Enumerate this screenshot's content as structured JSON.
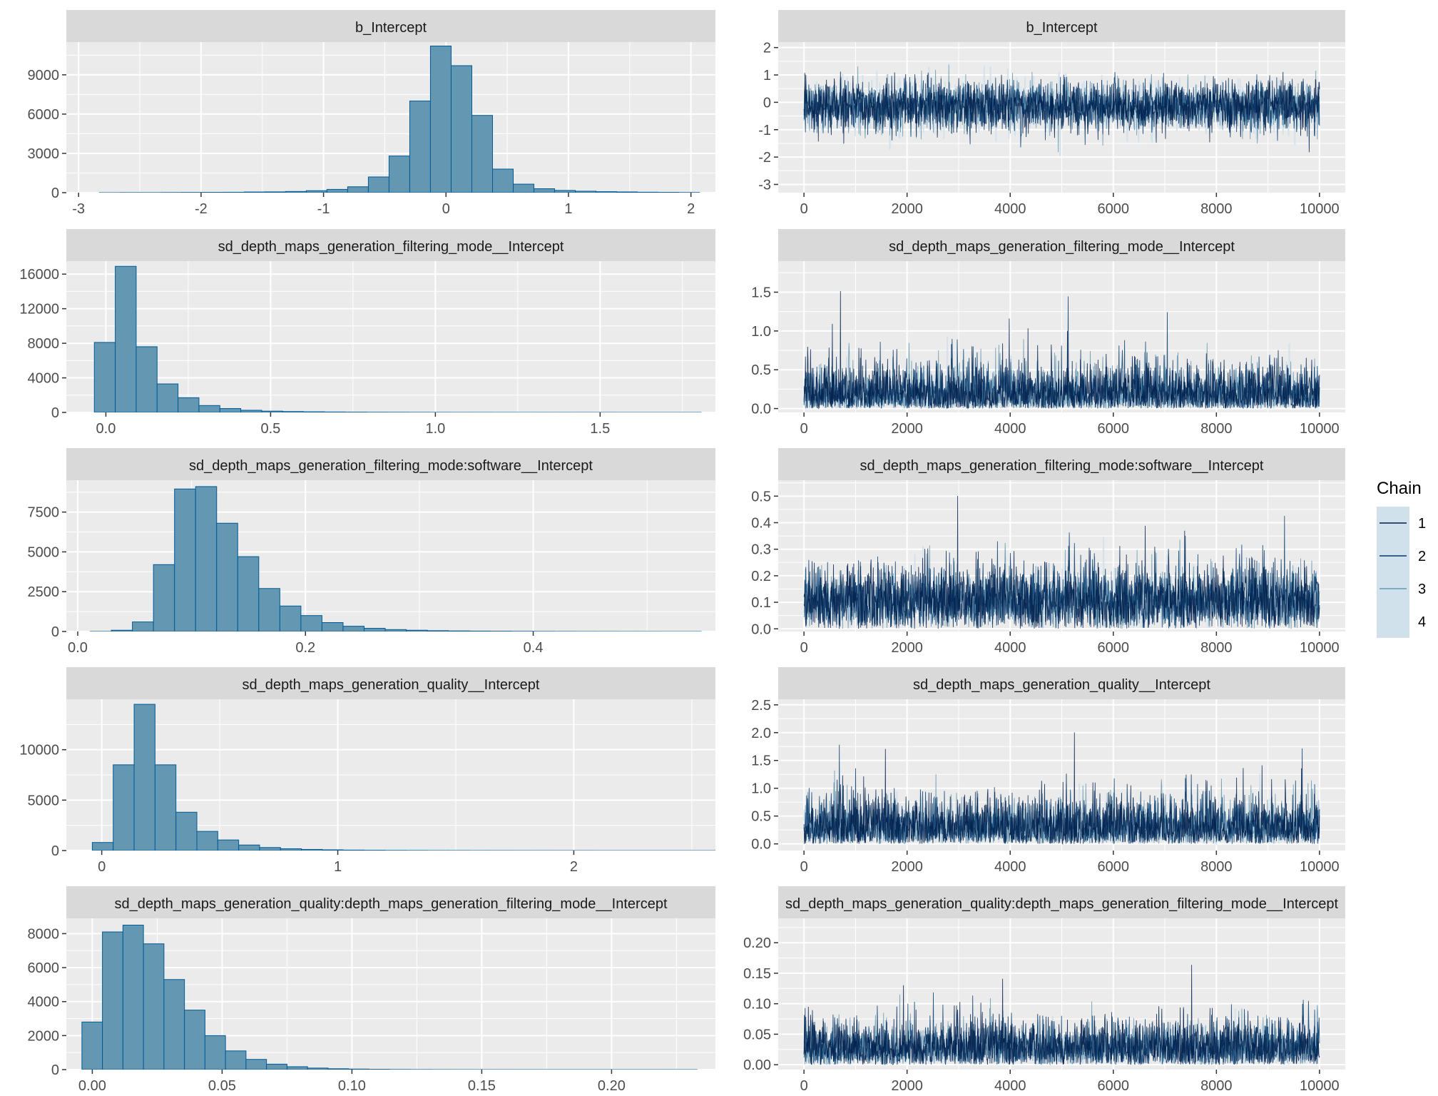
{
  "colors": {
    "panel_bg": "#ebebeb",
    "strip_bg": "#d9d9d9",
    "grid": "#ffffff",
    "hist_fill": "#6497b1",
    "hist_line": "#005b96",
    "tick": "#333333",
    "chain_colors": [
      "#011f4b",
      "#03396c",
      "#6497b1",
      "#d1e1ec"
    ]
  },
  "legend": {
    "title": "Chain",
    "items": [
      "1",
      "2",
      "3",
      "4"
    ]
  },
  "chart_data": [
    {
      "type": "bar",
      "title": "b_Intercept",
      "xlim": [
        -3.1,
        2.2
      ],
      "ylim": [
        0,
        11500
      ],
      "xticks": [
        -3,
        -2,
        -1,
        0,
        1,
        2
      ],
      "xtick_labels": [
        "-3",
        "-2",
        "-1",
        "0",
        "1",
        "2"
      ],
      "yticks": [
        0,
        3000,
        6000,
        9000
      ],
      "ytick_labels": [
        "0",
        "3000",
        "6000",
        "9000"
      ],
      "bin_start": -3.0,
      "bin_width": 0.169,
      "values": [
        0,
        5,
        10,
        10,
        15,
        20,
        25,
        30,
        50,
        60,
        90,
        150,
        250,
        450,
        1200,
        2800,
        7000,
        11200,
        9700,
        5900,
        1800,
        650,
        300,
        170,
        110,
        75,
        55,
        35,
        25,
        15
      ]
    },
    {
      "type": "line",
      "title": "b_Intercept",
      "xlim": [
        -500,
        10500
      ],
      "ylim": [
        -3.3,
        2.2
      ],
      "xticks": [
        0,
        2000,
        4000,
        6000,
        8000,
        10000
      ],
      "xtick_labels": [
        "0",
        "2000",
        "4000",
        "6000",
        "8000",
        "10000"
      ],
      "yticks": [
        -3,
        -2,
        -1,
        0,
        1,
        2
      ],
      "ytick_labels": [
        "-3",
        "-2",
        "-1",
        "0",
        "1",
        "2"
      ],
      "chains": 4,
      "iterations": 10000,
      "center": -0.15,
      "spread": 0.45,
      "tail": 1.1
    },
    {
      "type": "bar",
      "title": "sd_depth_maps_generation_filtering_mode__Intercept",
      "xlim": [
        -0.12,
        1.85
      ],
      "ylim": [
        0,
        17500
      ],
      "xticks": [
        0,
        0.5,
        1.0,
        1.5
      ],
      "xtick_labels": [
        "0.0",
        "0.5",
        "1.0",
        "1.5"
      ],
      "yticks": [
        0,
        4000,
        8000,
        12000,
        16000
      ],
      "ytick_labels": [
        "0",
        "4000",
        "8000",
        "12000",
        "16000"
      ],
      "bin_start": -0.035,
      "bin_width": 0.0635,
      "values": [
        8100,
        16900,
        7600,
        3300,
        1700,
        800,
        450,
        250,
        150,
        100,
        70,
        50,
        35,
        25,
        20,
        15,
        10,
        8,
        6,
        5,
        4,
        3,
        3,
        2,
        2,
        1,
        1,
        1,
        1
      ]
    },
    {
      "type": "line",
      "title": "sd_depth_maps_generation_filtering_mode__Intercept",
      "xlim": [
        -500,
        10500
      ],
      "ylim": [
        -0.05,
        1.9
      ],
      "xticks": [
        0,
        2000,
        4000,
        6000,
        8000,
        10000
      ],
      "xtick_labels": [
        "0",
        "2000",
        "4000",
        "6000",
        "8000",
        "10000"
      ],
      "yticks": [
        0,
        0.5,
        1.0,
        1.5
      ],
      "ytick_labels": [
        "0.0",
        "0.5",
        "1.0",
        "1.5"
      ],
      "chains": 4,
      "iterations": 10000,
      "center": 0.12,
      "spread": 0.22,
      "tail": 0.8
    },
    {
      "type": "bar",
      "title": "sd_depth_maps_generation_filtering_mode:software__Intercept",
      "xlim": [
        -0.01,
        0.56
      ],
      "ylim": [
        0,
        9500
      ],
      "xticks": [
        0,
        0.2,
        0.4
      ],
      "xtick_labels": [
        "0.0",
        "0.2",
        "0.4"
      ],
      "yticks": [
        0,
        2500,
        5000,
        7500
      ],
      "ytick_labels": [
        "0",
        "2500",
        "5000",
        "7500"
      ],
      "bin_start": 0.011,
      "bin_width": 0.0185,
      "values": [
        5,
        80,
        600,
        4200,
        8950,
        9100,
        6800,
        4700,
        2700,
        1600,
        1000,
        560,
        330,
        200,
        120,
        80,
        50,
        35,
        25,
        18,
        12,
        8,
        6,
        4,
        3,
        2,
        2,
        1,
        1
      ]
    },
    {
      "type": "line",
      "title": "sd_depth_maps_generation_filtering_mode:software__Intercept",
      "xlim": [
        -500,
        10500
      ],
      "ylim": [
        -0.01,
        0.56
      ],
      "xticks": [
        0,
        2000,
        4000,
        6000,
        8000,
        10000
      ],
      "xtick_labels": [
        "0",
        "2000",
        "4000",
        "6000",
        "8000",
        "10000"
      ],
      "yticks": [
        0,
        0.1,
        0.2,
        0.3,
        0.4,
        0.5
      ],
      "ytick_labels": [
        "0.0",
        "0.1",
        "0.2",
        "0.3",
        "0.4",
        "0.5"
      ],
      "chains": 4,
      "iterations": 10000,
      "center": 0.1,
      "spread": 0.06,
      "tail": 0.25
    },
    {
      "type": "bar",
      "title": "sd_depth_maps_generation_quality__Intercept",
      "xlim": [
        -0.15,
        2.6
      ],
      "ylim": [
        0,
        15000
      ],
      "xticks": [
        0,
        1,
        2
      ],
      "xtick_labels": [
        "0",
        "1",
        "2"
      ],
      "yticks": [
        0,
        5000,
        10000
      ],
      "ytick_labels": [
        "0",
        "5000",
        "10000"
      ],
      "bin_start": -0.04,
      "bin_width": 0.0886,
      "values": [
        800,
        8500,
        14500,
        8500,
        3800,
        1900,
        1050,
        550,
        300,
        180,
        110,
        70,
        45,
        30,
        20,
        15,
        10,
        8,
        6,
        5,
        4,
        3,
        2,
        2,
        1,
        1,
        1,
        1,
        1,
        1
      ]
    },
    {
      "type": "line",
      "title": "sd_depth_maps_generation_quality__Intercept",
      "xlim": [
        -500,
        10500
      ],
      "ylim": [
        -0.12,
        2.6
      ],
      "xticks": [
        0,
        2000,
        4000,
        6000,
        8000,
        10000
      ],
      "xtick_labels": [
        "0",
        "2000",
        "4000",
        "6000",
        "8000",
        "10000"
      ],
      "yticks": [
        0,
        0.5,
        1.0,
        1.5,
        2.0,
        2.5
      ],
      "ytick_labels": [
        "0.0",
        "0.5",
        "1.0",
        "1.5",
        "2.0",
        "2.5"
      ],
      "chains": 4,
      "iterations": 10000,
      "center": 0.25,
      "spread": 0.28,
      "tail": 1.0
    },
    {
      "type": "bar",
      "title": "sd_depth_maps_generation_quality:depth_maps_generation_filtering_mode__Intercept",
      "xlim": [
        -0.01,
        0.24
      ],
      "ylim": [
        0,
        8900
      ],
      "xticks": [
        0,
        0.05,
        0.1,
        0.15,
        0.2
      ],
      "xtick_labels": [
        "0.00",
        "0.05",
        "0.10",
        "0.15",
        "0.20"
      ],
      "yticks": [
        0,
        2000,
        4000,
        6000,
        8000
      ],
      "ytick_labels": [
        "0",
        "2000",
        "4000",
        "6000",
        "8000"
      ],
      "bin_start": -0.004,
      "bin_width": 0.0079,
      "values": [
        2800,
        8100,
        8500,
        7400,
        5300,
        3500,
        2000,
        1100,
        600,
        320,
        170,
        90,
        50,
        30,
        18,
        10,
        6,
        4,
        3,
        2,
        2,
        1,
        1,
        1,
        1,
        1,
        1,
        1,
        1,
        1
      ]
    },
    {
      "type": "line",
      "title": "sd_depth_maps_generation_quality:depth_maps_generation_filtering_mode__Intercept",
      "xlim": [
        -500,
        10500
      ],
      "ylim": [
        -0.008,
        0.24
      ],
      "xticks": [
        0,
        2000,
        4000,
        6000,
        8000,
        10000
      ],
      "xtick_labels": [
        "0",
        "2000",
        "4000",
        "6000",
        "8000",
        "10000"
      ],
      "yticks": [
        0,
        0.05,
        0.1,
        0.15,
        0.2
      ],
      "ytick_labels": [
        "0.00",
        "0.05",
        "0.10",
        "0.15",
        "0.20"
      ],
      "chains": 4,
      "iterations": 10000,
      "center": 0.025,
      "spread": 0.022,
      "tail": 0.08
    }
  ]
}
